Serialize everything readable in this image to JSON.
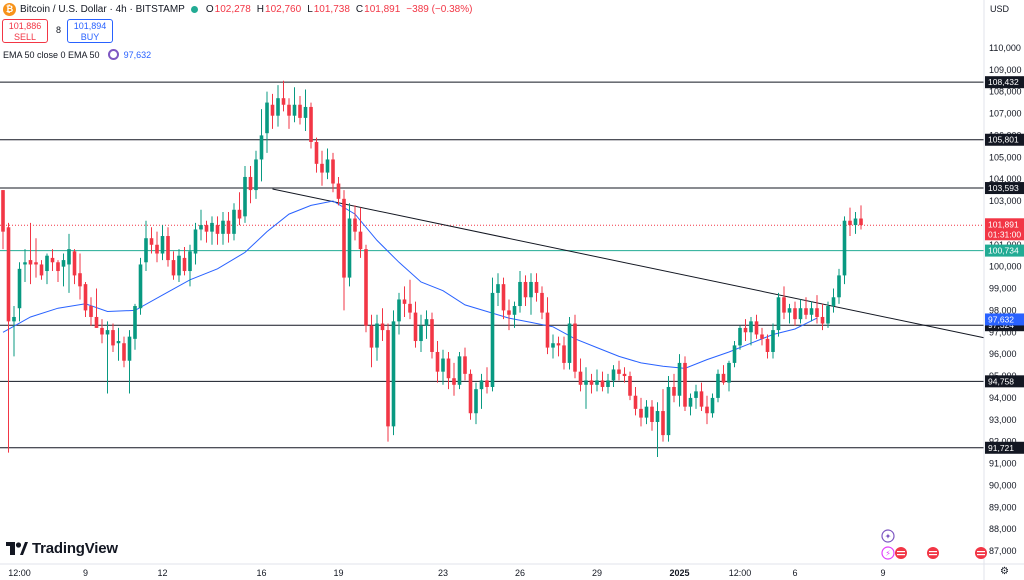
{
  "header": {
    "title": "Bitcoin / U.S. Dollar · 4h · BITSTAMP",
    "open_label": "O",
    "open": "102,278",
    "high_label": "H",
    "high": "102,760",
    "low_label": "L",
    "low": "101,738",
    "close_label": "C",
    "close": "101,891",
    "change": "−389 (−0.38%)"
  },
  "trade": {
    "sell_price": "101,886",
    "sell_label": "SELL",
    "spread": "8",
    "buy_price": "101,894",
    "buy_label": "BUY"
  },
  "indicator": {
    "label": "EMA 50 close 0 EMA 50",
    "value": "97,632"
  },
  "currency": "USD",
  "brand": "TradingView",
  "colors": {
    "up": "#089981",
    "down": "#f23645",
    "ema": "#2962ff",
    "accent": "#2962ff",
    "level_green": "#22ab94",
    "level_red": "#f23645"
  },
  "chart_data": {
    "type": "candlestick",
    "title": "Bitcoin / U.S. Dollar · 4h · BITSTAMP",
    "y_range": [
      86500,
      111000
    ],
    "y_ticks": [
      87000,
      88000,
      89000,
      90000,
      91000,
      92000,
      93000,
      94000,
      95000,
      96000,
      97000,
      98000,
      99000,
      100000,
      101000,
      102000,
      103000,
      104000,
      105000,
      106000,
      107000,
      108000,
      109000,
      110000
    ],
    "y_tick_labels": [
      "87,000",
      "88,000",
      "89,000",
      "90,000",
      "91,000",
      "92,000",
      "93,000",
      "94,000",
      "95,000",
      "96,000",
      "97,000",
      "98,000",
      "99,000",
      "100,000",
      "101,000",
      "102,000",
      "103,000",
      "104,000",
      "105,000",
      "106,000",
      "107,000",
      "108,000",
      "109,000",
      "110,000"
    ],
    "x_labels": [
      {
        "i": 3,
        "label": "12:00"
      },
      {
        "i": 15,
        "label": "9"
      },
      {
        "i": 29,
        "label": "12"
      },
      {
        "i": 47,
        "label": "16"
      },
      {
        "i": 61,
        "label": "19"
      },
      {
        "i": 80,
        "label": "23"
      },
      {
        "i": 94,
        "label": "26"
      },
      {
        "i": 108,
        "label": "29"
      },
      {
        "i": 123,
        "label": "2025"
      },
      {
        "i": 134,
        "label": "12:00"
      },
      {
        "i": 144,
        "label": "6"
      },
      {
        "i": 160,
        "label": "9"
      }
    ],
    "horizontal_levels": [
      {
        "value": 108432,
        "label": "108,432",
        "style": "solid-black"
      },
      {
        "value": 105801,
        "label": "105,801",
        "style": "solid-black"
      },
      {
        "value": 103593,
        "label": "103,593",
        "style": "solid-black"
      },
      {
        "value": 100734,
        "label": "100,734",
        "style": "solid-green"
      },
      {
        "value": 97324,
        "label": "97,324",
        "style": "solid-black"
      },
      {
        "value": 94758,
        "label": "94,758",
        "style": "solid-black"
      },
      {
        "value": 91721,
        "label": "91,721",
        "style": "solid-black"
      }
    ],
    "trendline": {
      "i1": 49,
      "v1": 103550,
      "i2": 166,
      "v2": 97400
    },
    "last_price": {
      "value": 101891,
      "label": "101,891",
      "countdown": "01:31:00"
    },
    "ema": {
      "name": "EMA 50",
      "value": 97632,
      "label": "97,632",
      "points": [
        [
          0,
          97000
        ],
        [
          5,
          97700
        ],
        [
          10,
          98100
        ],
        [
          15,
          98300
        ],
        [
          19,
          97950
        ],
        [
          24,
          98000
        ],
        [
          29,
          98700
        ],
        [
          34,
          99400
        ],
        [
          39,
          99900
        ],
        [
          44,
          100650
        ],
        [
          48,
          101600
        ],
        [
          52,
          102400
        ],
        [
          56,
          102800
        ],
        [
          60,
          103000
        ],
        [
          64,
          102400
        ],
        [
          68,
          101200
        ],
        [
          72,
          100200
        ],
        [
          76,
          99300
        ],
        [
          80,
          98900
        ],
        [
          84,
          98250
        ],
        [
          88,
          97950
        ],
        [
          92,
          97650
        ],
        [
          96,
          97450
        ],
        [
          100,
          97250
        ],
        [
          104,
          96700
        ],
        [
          108,
          96300
        ],
        [
          112,
          95900
        ],
        [
          116,
          95600
        ],
        [
          120,
          95450
        ],
        [
          124,
          95350
        ],
        [
          128,
          95750
        ],
        [
          132,
          96100
        ],
        [
          136,
          96500
        ],
        [
          140,
          96900
        ],
        [
          144,
          97150
        ],
        [
          148,
          97650
        ]
      ]
    },
    "candles": [
      [
        103500,
        103500,
        100800,
        101600
      ],
      [
        101800,
        102000,
        91500,
        97500
      ],
      [
        97500,
        98200,
        95900,
        97700
      ],
      [
        98100,
        100200,
        97500,
        99900
      ],
      [
        100100,
        100800,
        99300,
        100200
      ],
      [
        100300,
        102000,
        99200,
        100100
      ],
      [
        100200,
        101300,
        99500,
        100100
      ],
      [
        100100,
        100300,
        99400,
        99600
      ],
      [
        99800,
        100600,
        99200,
        100500
      ],
      [
        100400,
        100800,
        99800,
        100200
      ],
      [
        100200,
        100300,
        99300,
        99800
      ],
      [
        100000,
        100600,
        99100,
        100300
      ],
      [
        100100,
        101500,
        98800,
        100800
      ],
      [
        100700,
        100800,
        99200,
        99600
      ],
      [
        99700,
        100600,
        98500,
        99100
      ],
      [
        99200,
        99300,
        97700,
        98000
      ],
      [
        98200,
        98600,
        97300,
        97700
      ],
      [
        97700,
        99000,
        97200,
        97200
      ],
      [
        97200,
        97600,
        96500,
        96900
      ],
      [
        96900,
        97500,
        94200,
        97100
      ],
      [
        97100,
        97400,
        96100,
        96400
      ],
      [
        96500,
        97200,
        95700,
        96600
      ],
      [
        96500,
        96800,
        95400,
        95700
      ],
      [
        95700,
        97100,
        94200,
        96800
      ],
      [
        96700,
        98300,
        96200,
        98200
      ],
      [
        98100,
        100400,
        97800,
        100100
      ],
      [
        100200,
        102100,
        99800,
        101300
      ],
      [
        101300,
        101800,
        100600,
        101000
      ],
      [
        101000,
        101600,
        100200,
        100600
      ],
      [
        100600,
        101900,
        100300,
        101400
      ],
      [
        101400,
        101800,
        100000,
        100300
      ],
      [
        100300,
        100700,
        99400,
        99600
      ],
      [
        99600,
        100800,
        99300,
        100500
      ],
      [
        100400,
        100900,
        99600,
        99800
      ],
      [
        99800,
        101000,
        99100,
        100700
      ],
      [
        100600,
        102000,
        100100,
        101700
      ],
      [
        101700,
        102600,
        101200,
        101900
      ],
      [
        101900,
        102100,
        101100,
        101600
      ],
      [
        101600,
        102300,
        101000,
        102000
      ],
      [
        101900,
        102300,
        101000,
        101500
      ],
      [
        101500,
        102500,
        101000,
        102100
      ],
      [
        102100,
        102500,
        101100,
        101500
      ],
      [
        101500,
        102900,
        101200,
        102600
      ],
      [
        102600,
        103400,
        101900,
        102200
      ],
      [
        102300,
        104600,
        102000,
        104100
      ],
      [
        104100,
        104600,
        102900,
        103500
      ],
      [
        103500,
        105300,
        103100,
        104900
      ],
      [
        104900,
        107200,
        103900,
        106000
      ],
      [
        106100,
        108000,
        105200,
        107500
      ],
      [
        107400,
        107900,
        106300,
        106900
      ],
      [
        106900,
        108300,
        106400,
        107700
      ],
      [
        107700,
        108500,
        107100,
        107400
      ],
      [
        107400,
        107700,
        106300,
        106900
      ],
      [
        106900,
        108200,
        106600,
        107400
      ],
      [
        107400,
        107800,
        106500,
        106800
      ],
      [
        106800,
        108100,
        106200,
        107300
      ],
      [
        107300,
        107500,
        105400,
        105700
      ],
      [
        105700,
        105900,
        104300,
        104700
      ],
      [
        104700,
        105300,
        103700,
        104300
      ],
      [
        104300,
        105400,
        104000,
        104900
      ],
      [
        104900,
        105200,
        103400,
        103800
      ],
      [
        103800,
        104100,
        102800,
        103100
      ],
      [
        103100,
        103500,
        98000,
        99500
      ],
      [
        99500,
        102900,
        99100,
        102200
      ],
      [
        102200,
        102800,
        101200,
        101600
      ],
      [
        101600,
        102700,
        100400,
        100800
      ],
      [
        100800,
        101000,
        97000,
        97300
      ],
      [
        97300,
        97800,
        95400,
        96300
      ],
      [
        96300,
        97800,
        95700,
        97400
      ],
      [
        97400,
        98100,
        96600,
        97100
      ],
      [
        97100,
        97400,
        92000,
        92700
      ],
      [
        92700,
        98000,
        92300,
        97500
      ],
      [
        97500,
        98800,
        96900,
        98500
      ],
      [
        98500,
        99100,
        97700,
        98300
      ],
      [
        98300,
        99400,
        97600,
        97900
      ],
      [
        97900,
        98400,
        96300,
        96600
      ],
      [
        96600,
        97800,
        96100,
        97300
      ],
      [
        97300,
        98000,
        96700,
        97600
      ],
      [
        97600,
        97900,
        95800,
        96100
      ],
      [
        96100,
        96600,
        94700,
        95200
      ],
      [
        95200,
        96200,
        94600,
        95800
      ],
      [
        95800,
        96100,
        94400,
        94900
      ],
      [
        94900,
        95600,
        94100,
        94600
      ],
      [
        94600,
        96100,
        94400,
        95900
      ],
      [
        95900,
        96300,
        94800,
        95100
      ],
      [
        95100,
        95300,
        93000,
        93300
      ],
      [
        93300,
        94700,
        92800,
        94400
      ],
      [
        94400,
        95100,
        93500,
        94800
      ],
      [
        94800,
        95400,
        94200,
        94500
      ],
      [
        94500,
        99500,
        94300,
        98800
      ],
      [
        98800,
        99700,
        98200,
        99200
      ],
      [
        99200,
        99500,
        97600,
        98000
      ],
      [
        98000,
        98500,
        97100,
        97800
      ],
      [
        97800,
        98400,
        97200,
        98200
      ],
      [
        98200,
        99800,
        97900,
        99300
      ],
      [
        99300,
        99600,
        98200,
        98600
      ],
      [
        98600,
        99700,
        97800,
        99300
      ],
      [
        99300,
        99700,
        98400,
        98800
      ],
      [
        98800,
        99100,
        97600,
        97900
      ],
      [
        97900,
        98600,
        96000,
        96300
      ],
      [
        96300,
        96900,
        95800,
        96500
      ],
      [
        96500,
        96800,
        95900,
        96400
      ],
      [
        96400,
        96800,
        95300,
        95600
      ],
      [
        95600,
        97700,
        95300,
        97400
      ],
      [
        97400,
        97800,
        94900,
        95200
      ],
      [
        95200,
        95800,
        94300,
        94600
      ],
      [
        94600,
        95400,
        93500,
        94800
      ],
      [
        94800,
        95100,
        94200,
        94600
      ],
      [
        94600,
        95300,
        94300,
        94800
      ],
      [
        94800,
        95200,
        94300,
        94500
      ],
      [
        94500,
        95100,
        94200,
        94800
      ],
      [
        94800,
        95500,
        94500,
        95300
      ],
      [
        95300,
        95700,
        94800,
        95100
      ],
      [
        95100,
        95400,
        94700,
        95000
      ],
      [
        95000,
        95200,
        93900,
        94100
      ],
      [
        94100,
        94500,
        93200,
        93500
      ],
      [
        93500,
        94000,
        92700,
        93100
      ],
      [
        93100,
        93900,
        92800,
        93600
      ],
      [
        93600,
        93900,
        92500,
        92900
      ],
      [
        92900,
        93800,
        91300,
        93400
      ],
      [
        93400,
        94400,
        92000,
        92300
      ],
      [
        92300,
        95000,
        92000,
        94500
      ],
      [
        94500,
        95100,
        93800,
        94100
      ],
      [
        94100,
        96000,
        93600,
        95600
      ],
      [
        95600,
        95900,
        93400,
        93600
      ],
      [
        93600,
        94200,
        93200,
        94000
      ],
      [
        94000,
        94600,
        93500,
        94300
      ],
      [
        94300,
        94700,
        93400,
        93600
      ],
      [
        93600,
        94100,
        92800,
        93300
      ],
      [
        93300,
        94200,
        93100,
        94000
      ],
      [
        94000,
        95300,
        93800,
        95100
      ],
      [
        95100,
        95500,
        94600,
        94700
      ],
      [
        94700,
        95700,
        94300,
        95600
      ],
      [
        95600,
        96600,
        95400,
        96400
      ],
      [
        96400,
        97300,
        96200,
        97200
      ],
      [
        97200,
        97600,
        96600,
        97000
      ],
      [
        97000,
        97700,
        96400,
        97500
      ],
      [
        97500,
        97800,
        96700,
        96900
      ],
      [
        96900,
        97200,
        96400,
        96700
      ],
      [
        96700,
        96900,
        95800,
        96100
      ],
      [
        96100,
        97400,
        95800,
        97100
      ],
      [
        97100,
        98800,
        96800,
        98600
      ],
      [
        98600,
        99100,
        97600,
        97900
      ],
      [
        97900,
        98300,
        97400,
        98100
      ],
      [
        98100,
        98400,
        97300,
        97600
      ],
      [
        97600,
        98500,
        97400,
        98100
      ],
      [
        98100,
        98600,
        97600,
        97800
      ],
      [
        97800,
        98400,
        97500,
        98100
      ],
      [
        98100,
        98700,
        97400,
        97700
      ],
      [
        97700,
        98300,
        97100,
        97400
      ],
      [
        97400,
        98400,
        97200,
        98200
      ],
      [
        98200,
        99000,
        97900,
        98600
      ],
      [
        98600,
        99900,
        98300,
        99600
      ],
      [
        99600,
        102300,
        99200,
        102100
      ],
      [
        102100,
        102700,
        101400,
        101900
      ],
      [
        101900,
        102500,
        101500,
        102200
      ],
      [
        102200,
        102800,
        101700,
        101900
      ]
    ]
  }
}
